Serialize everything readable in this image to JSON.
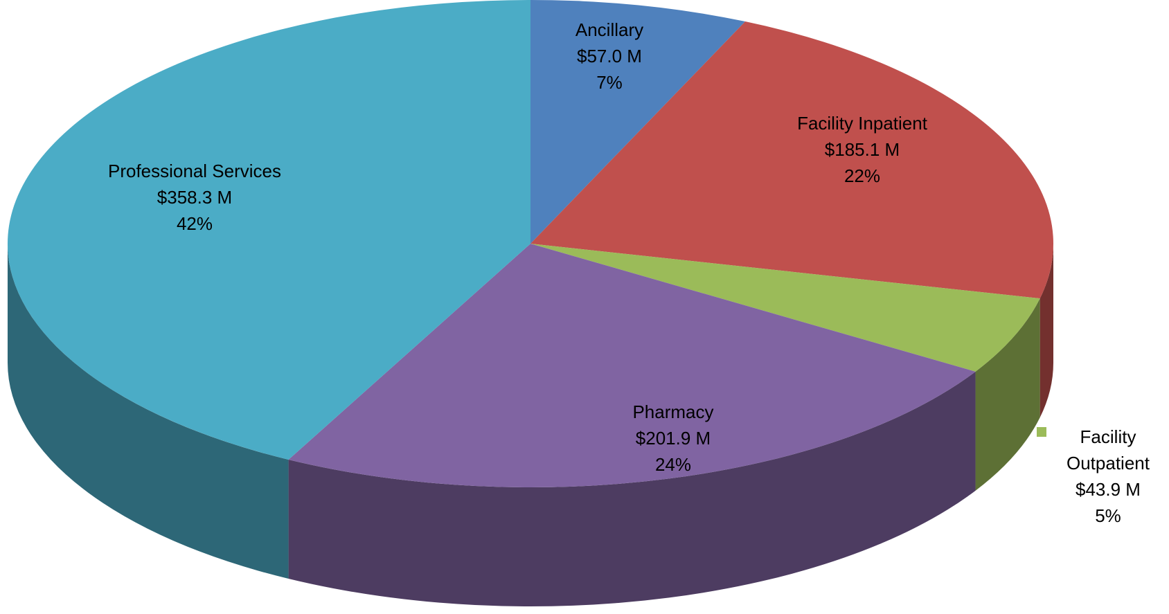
{
  "chart_data": {
    "type": "pie",
    "categories": [
      "Ancillary",
      "Facility Inpatient",
      "Facility Outpatient",
      "Pharmacy",
      "Professional Services"
    ],
    "values": [
      57.0,
      185.1,
      43.9,
      201.9,
      358.3
    ],
    "value_labels": [
      "$57.0 M",
      "$185.1 M",
      "$43.9 M",
      "$201.9 M",
      "$358.3 M"
    ],
    "percent_labels": [
      "7%",
      "22%",
      "5%",
      "24%",
      "42%"
    ],
    "colors": [
      "#4f81bd",
      "#c0504d",
      "#9bbb59",
      "#8064a2",
      "#4bacc6"
    ]
  }
}
